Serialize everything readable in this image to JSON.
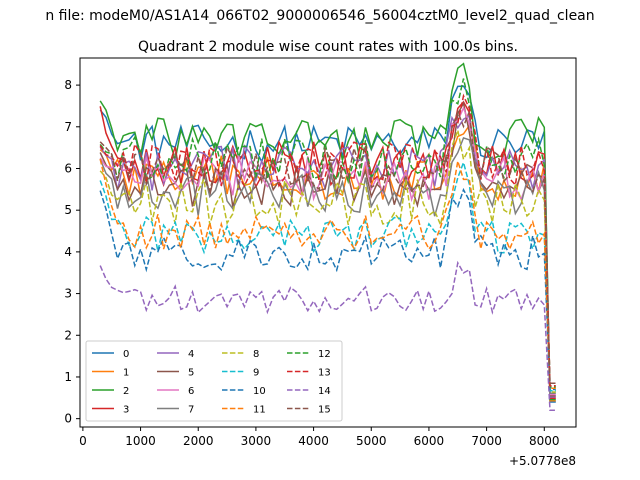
{
  "chart_data": {
    "type": "line",
    "suptitle": "n file: modeM0/AS1A14_066T02_9000006546_56004cztM0_level2_quad_clean",
    "title": "Quadrant 2 module wise count rates with 100.0s bins.",
    "xlabel": "",
    "ylabel": "",
    "x_offset_label": "+5.0778e8",
    "xlim": [
      -50,
      8550
    ],
    "ylim": [
      -0.2,
      8.65
    ],
    "xticks": [
      0,
      1000,
      2000,
      3000,
      4000,
      5000,
      6000,
      7000,
      8000
    ],
    "yticks": [
      0,
      1,
      2,
      3,
      4,
      5,
      6,
      7,
      8
    ],
    "x_start": 300,
    "x_step": 100,
    "legend_placement": "lower-left",
    "series": [
      {
        "name": "0",
        "color": "#1f77b4",
        "dash": "solid",
        "base": 6.6,
        "amp": 0.2,
        "start": 7.5
      },
      {
        "name": "1",
        "color": "#ff7f0e",
        "dash": "solid",
        "base": 5.8,
        "amp": 0.25,
        "start": 6.5
      },
      {
        "name": "2",
        "color": "#2ca02c",
        "dash": "solid",
        "base": 6.7,
        "amp": 0.25,
        "start": 7.6
      },
      {
        "name": "3",
        "color": "#d62728",
        "dash": "solid",
        "base": 6.1,
        "amp": 0.25,
        "start": 7.4
      },
      {
        "name": "4",
        "color": "#9467bd",
        "dash": "solid",
        "base": 6.0,
        "amp": 0.25,
        "start": 6.6
      },
      {
        "name": "5",
        "color": "#8c564b",
        "dash": "solid",
        "base": 5.6,
        "amp": 0.25,
        "start": 6.4
      },
      {
        "name": "6",
        "color": "#e377c2",
        "dash": "solid",
        "base": 5.8,
        "amp": 0.25,
        "start": 6.2
      },
      {
        "name": "7",
        "color": "#7f7f7f",
        "dash": "solid",
        "base": 5.4,
        "amp": 0.25,
        "start": 6.1
      },
      {
        "name": "8",
        "color": "#bcbd22",
        "dash": "dashed",
        "base": 5.2,
        "amp": 0.25,
        "start": 6.0
      },
      {
        "name": "9",
        "color": "#17becf",
        "dash": "dashed",
        "base": 4.4,
        "amp": 0.2,
        "start": 5.7
      },
      {
        "name": "10",
        "color": "#1f77b4",
        "dash": "dashed",
        "base": 4.0,
        "amp": 0.2,
        "start": 5.4
      },
      {
        "name": "11",
        "color": "#ff7f0e",
        "dash": "dashed",
        "base": 4.5,
        "amp": 0.2,
        "start": 6.3
      },
      {
        "name": "12",
        "color": "#2ca02c",
        "dash": "dashed",
        "base": 6.2,
        "amp": 0.25,
        "start": 6.6
      },
      {
        "name": "13",
        "color": "#d62728",
        "dash": "dashed",
        "base": 6.1,
        "amp": 0.25,
        "start": 6.5
      },
      {
        "name": "14",
        "color": "#9467bd",
        "dash": "dashed",
        "base": 2.85,
        "amp": 0.15,
        "start": 3.6
      },
      {
        "name": "15",
        "color": "#8c564b",
        "dash": "dashed",
        "base": 6.0,
        "amp": 0.25,
        "start": 6.7
      }
    ]
  }
}
